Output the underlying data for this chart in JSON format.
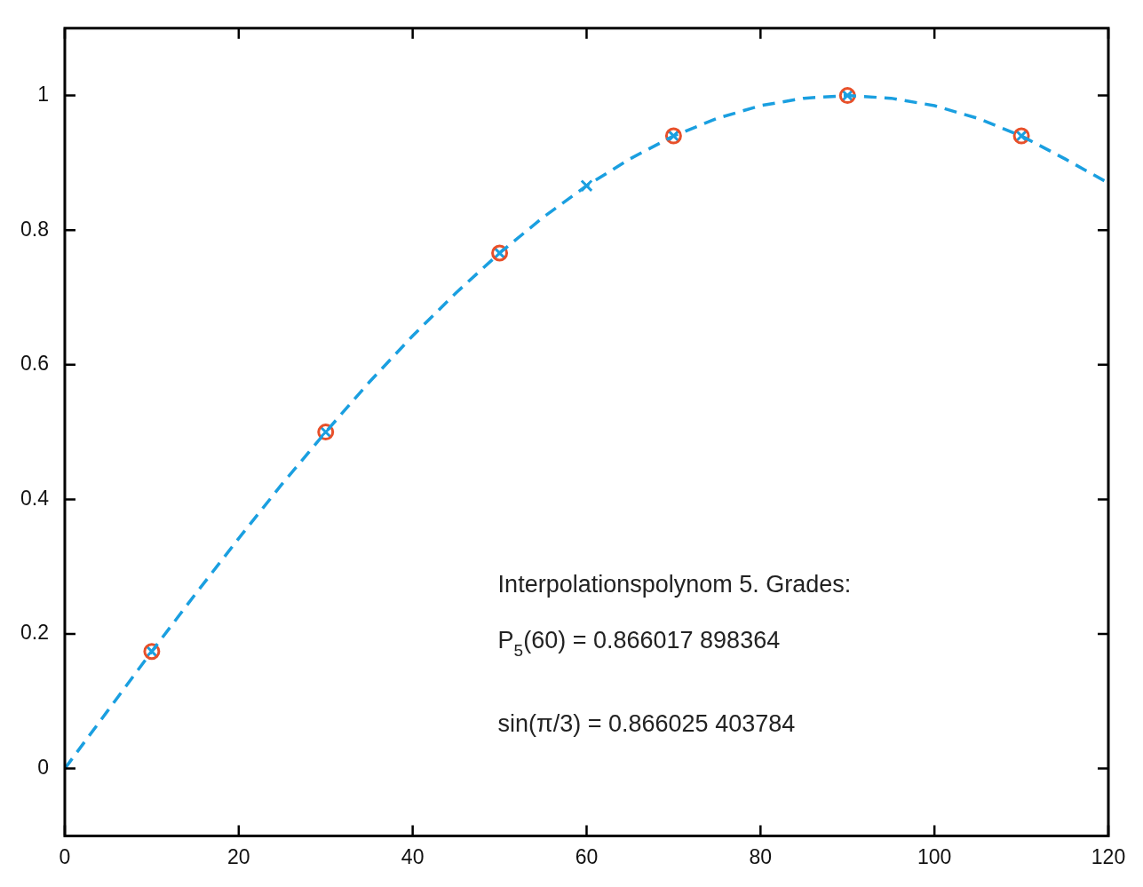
{
  "chart_data": {
    "type": "line",
    "xlim": [
      0,
      120
    ],
    "ylim": [
      -0.1,
      1.1
    ],
    "xticks": [
      0,
      20,
      40,
      60,
      80,
      100,
      120
    ],
    "yticks": [
      0,
      0.2,
      0.4,
      0.6,
      0.8,
      1
    ],
    "grid": false,
    "legend": false,
    "annotations": [
      "Interpolationspolynom 5. Grades:",
      "P$_{5}$(60) = 0.866017 898364",
      "sin(π/3) = 0.866025 403784"
    ],
    "series": [
      {
        "type": "line",
        "color": "#1a9fe0",
        "line_style": "dashed",
        "marker": "none",
        "x": [
          0,
          5,
          10,
          15,
          20,
          25,
          30,
          35,
          40,
          45,
          50,
          55,
          60,
          65,
          70,
          75,
          80,
          85,
          90,
          95,
          100,
          105,
          110,
          115,
          120
        ],
        "values": [
          0,
          0.087,
          0.174,
          0.259,
          0.342,
          0.423,
          0.5,
          0.574,
          0.643,
          0.707,
          0.766,
          0.819,
          0.866,
          0.906,
          0.94,
          0.966,
          0.985,
          0.996,
          1,
          0.996,
          0.985,
          0.966,
          0.94,
          0.906,
          0.87
        ]
      },
      {
        "type": "scatter",
        "color": "#e8502a",
        "marker": "circle",
        "x": [
          10,
          30,
          50,
          70,
          90,
          110
        ],
        "values": [
          0.174,
          0.5,
          0.766,
          0.94,
          1,
          0.94
        ]
      },
      {
        "type": "scatter",
        "color": "#1a9fe0",
        "marker": "cross",
        "x": [
          10,
          30,
          50,
          60,
          70,
          90,
          110
        ],
        "values": [
          0.174,
          0.5,
          0.766,
          0.866,
          0.94,
          1,
          0.94
        ]
      }
    ]
  }
}
